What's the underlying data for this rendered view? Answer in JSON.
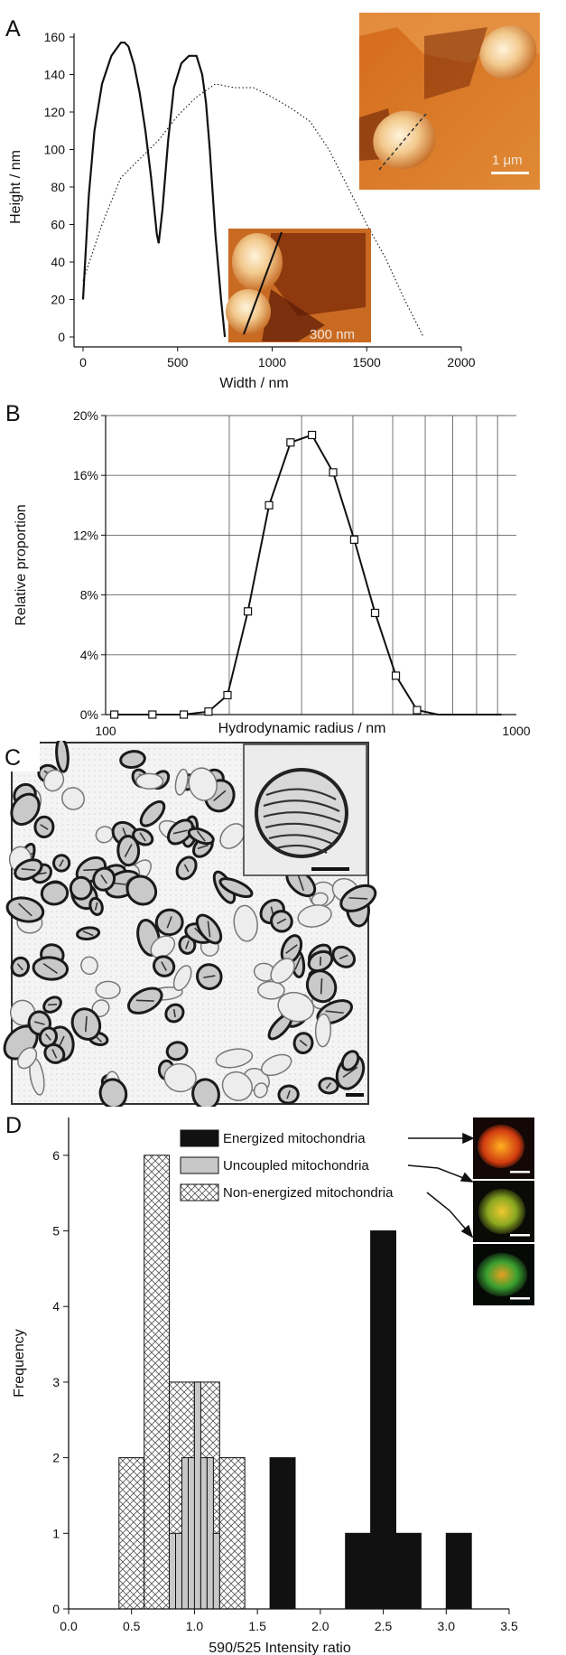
{
  "panel_a": {
    "label": "A",
    "xlabel": "Width / nm",
    "ylabel": "Height / nm",
    "x_ticks": [
      "0",
      "500",
      "1000",
      "1500",
      "2000"
    ],
    "y_ticks": [
      "0",
      "20",
      "40",
      "60",
      "80",
      "100",
      "120",
      "140",
      "160"
    ],
    "scale_large": "1 μm",
    "scale_small": "300 nm"
  },
  "panel_b": {
    "label": "B",
    "xlabel": "Hydrodynamic radius / nm",
    "ylabel": "Relative proportion",
    "x_ticks": [
      "100",
      "1000"
    ],
    "y_ticks": [
      "0%",
      "4%",
      "8%",
      "12%",
      "16%",
      "20%"
    ]
  },
  "panel_c": {
    "label": "C"
  },
  "panel_d": {
    "label": "D",
    "xlabel": "590/525 Intensity ratio",
    "ylabel": "Frequency",
    "x_ticks": [
      "0.0",
      "0.5",
      "1.0",
      "1.5",
      "2.0",
      "2.5",
      "3.0",
      "3.5"
    ],
    "y_ticks": [
      "0",
      "1",
      "2",
      "3",
      "4",
      "5",
      "6"
    ],
    "legend": [
      "Energized mitochondria",
      "Uncoupled mitochondria",
      "Non-energized mitochondria"
    ]
  },
  "colors": {
    "ink": "#111111",
    "grid": "#555555",
    "afm_dark": "#7a2a08",
    "afm_light": "#f6d9a3",
    "uncoupled": "#c8c8c8"
  },
  "chart_data": [
    {
      "type": "line",
      "xlabel": "Width / nm",
      "ylabel": "Height / nm",
      "xlim": [
        0,
        2000
      ],
      "ylim": [
        0,
        160
      ],
      "series": [
        {
          "style": "solid",
          "x": [
            0,
            30,
            60,
            100,
            150,
            200,
            220,
            240,
            270,
            300,
            330,
            360,
            390,
            400,
            420,
            450,
            480,
            520,
            560,
            600,
            630,
            650,
            670,
            700,
            730,
            750
          ],
          "y": [
            20,
            75,
            110,
            135,
            150,
            157,
            157,
            155,
            145,
            130,
            110,
            85,
            55,
            50,
            68,
            105,
            133,
            146,
            150,
            150,
            140,
            125,
            100,
            55,
            20,
            0
          ]
        },
        {
          "style": "dotted",
          "x": [
            0,
            100,
            200,
            300,
            400,
            500,
            600,
            700,
            800,
            900,
            1000,
            1100,
            1200,
            1300,
            1400,
            1500,
            1600,
            1700,
            1800
          ],
          "y": [
            30,
            60,
            85,
            95,
            105,
            118,
            128,
            135,
            133,
            133,
            128,
            122,
            115,
            100,
            80,
            60,
            42,
            20,
            0
          ]
        }
      ]
    },
    {
      "type": "line",
      "xlabel": "Hydrodynamic radius / nm",
      "ylabel": "Relative proportion",
      "x_scale": "log",
      "xlim": [
        100,
        1000
      ],
      "ylim": [
        0,
        20
      ],
      "y_unit": "%",
      "grid": true,
      "x": [
        105,
        130,
        155,
        178,
        198,
        222,
        250,
        282,
        318,
        358,
        403,
        453,
        509,
        573,
        645,
        725,
        815,
        920
      ],
      "y": [
        0,
        0,
        0,
        0.2,
        1.3,
        6.9,
        14.0,
        18.2,
        18.7,
        16.2,
        11.7,
        6.8,
        2.6,
        0.3,
        0,
        0,
        0,
        0
      ]
    },
    {
      "type": "bar",
      "xlabel": "590/525 Intensity ratio",
      "ylabel": "Frequency",
      "xlim": [
        0,
        3.5
      ],
      "ylim": [
        0,
        6.5
      ],
      "series": [
        {
          "name": "Energized mitochondria",
          "bins": [
            [
              1.6,
              1.8,
              2
            ],
            [
              2.2,
              2.4,
              1
            ],
            [
              2.4,
              2.6,
              5
            ],
            [
              2.6,
              2.8,
              1
            ],
            [
              3.0,
              3.2,
              1
            ]
          ]
        },
        {
          "name": "Uncoupled mitochondria",
          "bins": [
            [
              0.8,
              0.85,
              1
            ],
            [
              0.85,
              0.9,
              1
            ],
            [
              0.9,
              0.95,
              2
            ],
            [
              0.95,
              1.0,
              2
            ],
            [
              1.0,
              1.05,
              3
            ],
            [
              1.05,
              1.1,
              2
            ],
            [
              1.1,
              1.15,
              2
            ],
            [
              1.15,
              1.2,
              1
            ]
          ]
        },
        {
          "name": "Non-energized mitochondria",
          "bins": [
            [
              0.4,
              0.6,
              2
            ],
            [
              0.6,
              0.8,
              6
            ],
            [
              0.8,
              1.0,
              3
            ],
            [
              1.0,
              1.2,
              3
            ],
            [
              1.2,
              1.4,
              2
            ]
          ]
        }
      ]
    }
  ]
}
